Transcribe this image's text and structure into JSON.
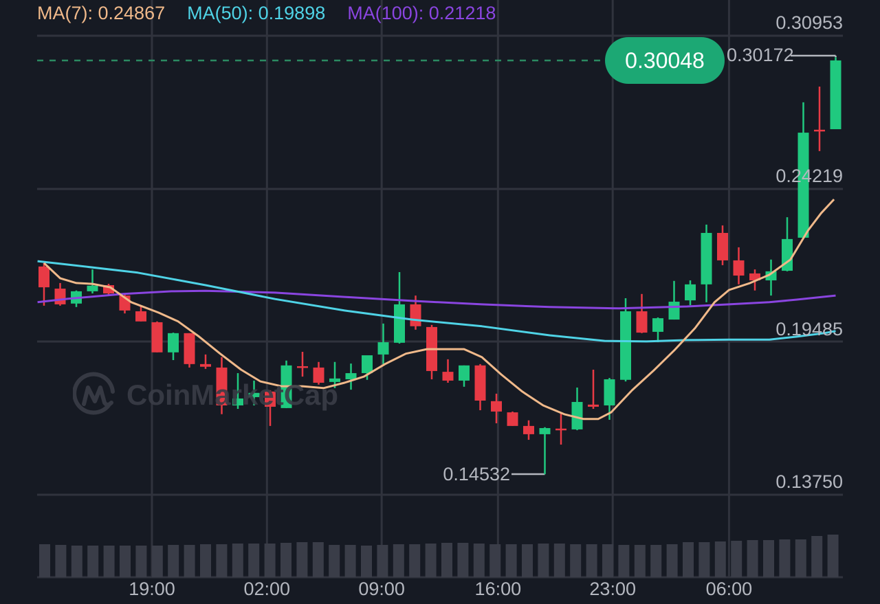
{
  "legend": {
    "ma7": {
      "label": "MA(7): 0.24867",
      "color": "#f0b98a"
    },
    "ma50": {
      "label": "MA(50): 0.19898",
      "color": "#4fd3e6"
    },
    "ma100": {
      "label": "MA(100): 0.21218",
      "color": "#8a45e0"
    }
  },
  "current_price": "0.30048",
  "watermark": "CoinMarketCap",
  "colors": {
    "up": "#20c97f",
    "down": "#e83a45",
    "grid": "#30333d",
    "volume": "#3a3d48"
  },
  "chart_data": {
    "type": "candlestick",
    "title": "",
    "y_axis_labels": [
      "0.30953",
      "0.24219",
      "0.19485",
      "0.13750"
    ],
    "x_ticks": [
      {
        "label": "19:00",
        "t": 6.68
      },
      {
        "label": "02:00",
        "t": 13.8
      },
      {
        "label": "09:00",
        "t": 20.9
      },
      {
        "label": "16:00",
        "t": 28.1
      },
      {
        "label": "23:00",
        "t": 35.2
      },
      {
        "label": "06:00",
        "t": 42.4
      }
    ],
    "max_marker": {
      "label": "0.30172",
      "price": 0.30172,
      "t": 49
    },
    "min_marker": {
      "label": "0.14532",
      "price": 0.14532,
      "t": 31
    },
    "last_price": 0.30048,
    "candles": [
      [
        0.2232,
        0.2245,
        0.2085,
        0.2154
      ],
      [
        0.2149,
        0.217,
        0.2085,
        0.209
      ],
      [
        0.2093,
        0.2142,
        0.208,
        0.2139
      ],
      [
        0.2139,
        0.2221,
        0.2131,
        0.216
      ],
      [
        0.2162,
        0.2167,
        0.2123,
        0.2131
      ],
      [
        0.2123,
        0.2129,
        0.2056,
        0.2067
      ],
      [
        0.2064,
        0.2087,
        0.2026,
        0.2026
      ],
      [
        0.2023,
        0.2026,
        0.191,
        0.191
      ],
      [
        0.191,
        0.1984,
        0.1881,
        0.1982
      ],
      [
        0.1982,
        0.1982,
        0.1853,
        0.1866
      ],
      [
        0.1866,
        0.1902,
        0.1848,
        0.1856
      ],
      [
        0.1853,
        0.1892,
        0.1678,
        0.1711
      ],
      [
        0.1711,
        0.1832,
        0.1698,
        0.1737
      ],
      [
        0.1742,
        0.1804,
        0.1711,
        0.1758
      ],
      [
        0.1763,
        0.1768,
        0.1634,
        0.1706
      ],
      [
        0.1701,
        0.1879,
        0.1701,
        0.1861
      ],
      [
        0.1858,
        0.1912,
        0.1819,
        0.1856
      ],
      [
        0.1853,
        0.1874,
        0.1789,
        0.1796
      ],
      [
        0.1799,
        0.1874,
        0.1776,
        0.1812
      ],
      [
        0.1809,
        0.1868,
        0.177,
        0.1832
      ],
      [
        0.1832,
        0.1897,
        0.1807,
        0.1899
      ],
      [
        0.1902,
        0.2018,
        0.1866,
        0.1948
      ],
      [
        0.1946,
        0.2211,
        0.1943,
        0.209
      ],
      [
        0.209,
        0.2123,
        0.1995,
        0.2008
      ],
      [
        0.2005,
        0.2013,
        0.1809,
        0.184
      ],
      [
        0.1837,
        0.1884,
        0.1796,
        0.1804
      ],
      [
        0.1804,
        0.1861,
        0.1781,
        0.1861
      ],
      [
        0.1861,
        0.1866,
        0.1693,
        0.1729
      ],
      [
        0.1727,
        0.1755,
        0.1644,
        0.1688
      ],
      [
        0.1685,
        0.1688,
        0.1634,
        0.1634
      ],
      [
        0.1634,
        0.1655,
        0.1582,
        0.1603
      ],
      [
        0.1603,
        0.1629,
        0.1453,
        0.1626
      ],
      [
        0.1624,
        0.168,
        0.1564,
        0.1618
      ],
      [
        0.1621,
        0.1778,
        0.1618,
        0.1724
      ],
      [
        0.1714,
        0.1845,
        0.1698,
        0.1706
      ],
      [
        0.1711,
        0.1814,
        0.1657,
        0.1809
      ],
      [
        0.1807,
        0.2113,
        0.1801,
        0.2064
      ],
      [
        0.2064,
        0.2129,
        0.1982,
        0.1984
      ],
      [
        0.1987,
        0.2041,
        0.1948,
        0.2038
      ],
      [
        0.2033,
        0.2178,
        0.2033,
        0.21
      ],
      [
        0.2105,
        0.218,
        0.2087,
        0.2165
      ],
      [
        0.2165,
        0.2389,
        0.2098,
        0.2358
      ],
      [
        0.2358,
        0.2386,
        0.2237,
        0.2255
      ],
      [
        0.2255,
        0.2304,
        0.2165,
        0.2198
      ],
      [
        0.2206,
        0.2221,
        0.2142,
        0.218
      ],
      [
        0.218,
        0.2258,
        0.2123,
        0.2214
      ],
      [
        0.2216,
        0.2417,
        0.2214,
        0.2335
      ],
      [
        0.234,
        0.2848,
        0.234,
        0.2734
      ],
      [
        0.2745,
        0.2907,
        0.2665,
        0.2742
      ],
      [
        0.2747,
        0.3017,
        0.2747,
        0.3005
      ]
    ],
    "candle_format": [
      "open",
      "high",
      "low",
      "close"
    ],
    "volume": [
      48,
      47,
      46,
      46,
      46,
      46,
      46,
      46,
      47,
      47,
      48,
      48,
      49,
      49,
      49,
      50,
      51,
      51,
      47,
      47,
      46,
      47,
      48,
      48,
      49,
      50,
      50,
      49,
      48,
      48,
      48,
      49,
      49,
      48,
      48,
      48,
      47,
      47,
      47,
      48,
      51,
      51,
      52,
      53,
      54,
      54,
      55,
      55,
      60,
      62
    ],
    "series": [
      {
        "name": "MA(7)",
        "points": [
          [
            0,
            0.2245
          ],
          [
            1,
            0.2188
          ],
          [
            2,
            0.217
          ],
          [
            3,
            0.2167
          ],
          [
            4.1,
            0.2154
          ],
          [
            5.4,
            0.2098
          ],
          [
            7.1,
            0.2059
          ],
          [
            8.3,
            0.2026
          ],
          [
            9.6,
            0.1969
          ],
          [
            10.9,
            0.1905
          ],
          [
            12.2,
            0.1845
          ],
          [
            13.4,
            0.1801
          ],
          [
            14.7,
            0.1783
          ],
          [
            16,
            0.1783
          ],
          [
            17.3,
            0.1776
          ],
          [
            18.6,
            0.1796
          ],
          [
            19.8,
            0.1819
          ],
          [
            21.1,
            0.1866
          ],
          [
            22.4,
            0.1905
          ],
          [
            23.7,
            0.1922
          ],
          [
            26,
            0.1922
          ],
          [
            27.1,
            0.1892
          ],
          [
            28.3,
            0.1827
          ],
          [
            29.6,
            0.1763
          ],
          [
            30.9,
            0.1711
          ],
          [
            32.2,
            0.1678
          ],
          [
            33.4,
            0.166
          ],
          [
            34.3,
            0.166
          ],
          [
            35.1,
            0.1685
          ],
          [
            36.4,
            0.1768
          ],
          [
            37.7,
            0.184
          ],
          [
            39,
            0.1917
          ],
          [
            40.3,
            0.2001
          ],
          [
            41.5,
            0.2098
          ],
          [
            42.4,
            0.2144
          ],
          [
            43.7,
            0.217
          ],
          [
            44.9,
            0.2201
          ],
          [
            46.2,
            0.2258
          ],
          [
            47.3,
            0.2368
          ],
          [
            48.1,
            0.2432
          ],
          [
            48.9,
            0.2484
          ]
        ]
      },
      {
        "name": "MA(50)",
        "points": [
          [
            -0.4,
            0.2252
          ],
          [
            1.5,
            0.2239
          ],
          [
            5.8,
            0.2209
          ],
          [
            10,
            0.2162
          ],
          [
            14.3,
            0.211
          ],
          [
            18.6,
            0.2067
          ],
          [
            22.8,
            0.2033
          ],
          [
            27.1,
            0.2008
          ],
          [
            31.3,
            0.1974
          ],
          [
            34.7,
            0.1953
          ],
          [
            37.3,
            0.1951
          ],
          [
            39.8,
            0.1956
          ],
          [
            42.4,
            0.1958
          ],
          [
            44.9,
            0.1958
          ],
          [
            46.6,
            0.1969
          ],
          [
            48.3,
            0.1982
          ],
          [
            49,
            0.199
          ]
        ]
      },
      {
        "name": "MA(100)",
        "points": [
          [
            -0.4,
            0.2098
          ],
          [
            1.5,
            0.2111
          ],
          [
            4.9,
            0.2129
          ],
          [
            7.9,
            0.2139
          ],
          [
            10,
            0.2141
          ],
          [
            14.3,
            0.2134
          ],
          [
            18.6,
            0.2118
          ],
          [
            22.8,
            0.2103
          ],
          [
            27.1,
            0.209
          ],
          [
            31.3,
            0.208
          ],
          [
            35.6,
            0.2075
          ],
          [
            39.8,
            0.2082
          ],
          [
            42.4,
            0.209
          ],
          [
            44.9,
            0.2098
          ],
          [
            46.6,
            0.2108
          ],
          [
            49,
            0.2123
          ]
        ]
      }
    ]
  }
}
